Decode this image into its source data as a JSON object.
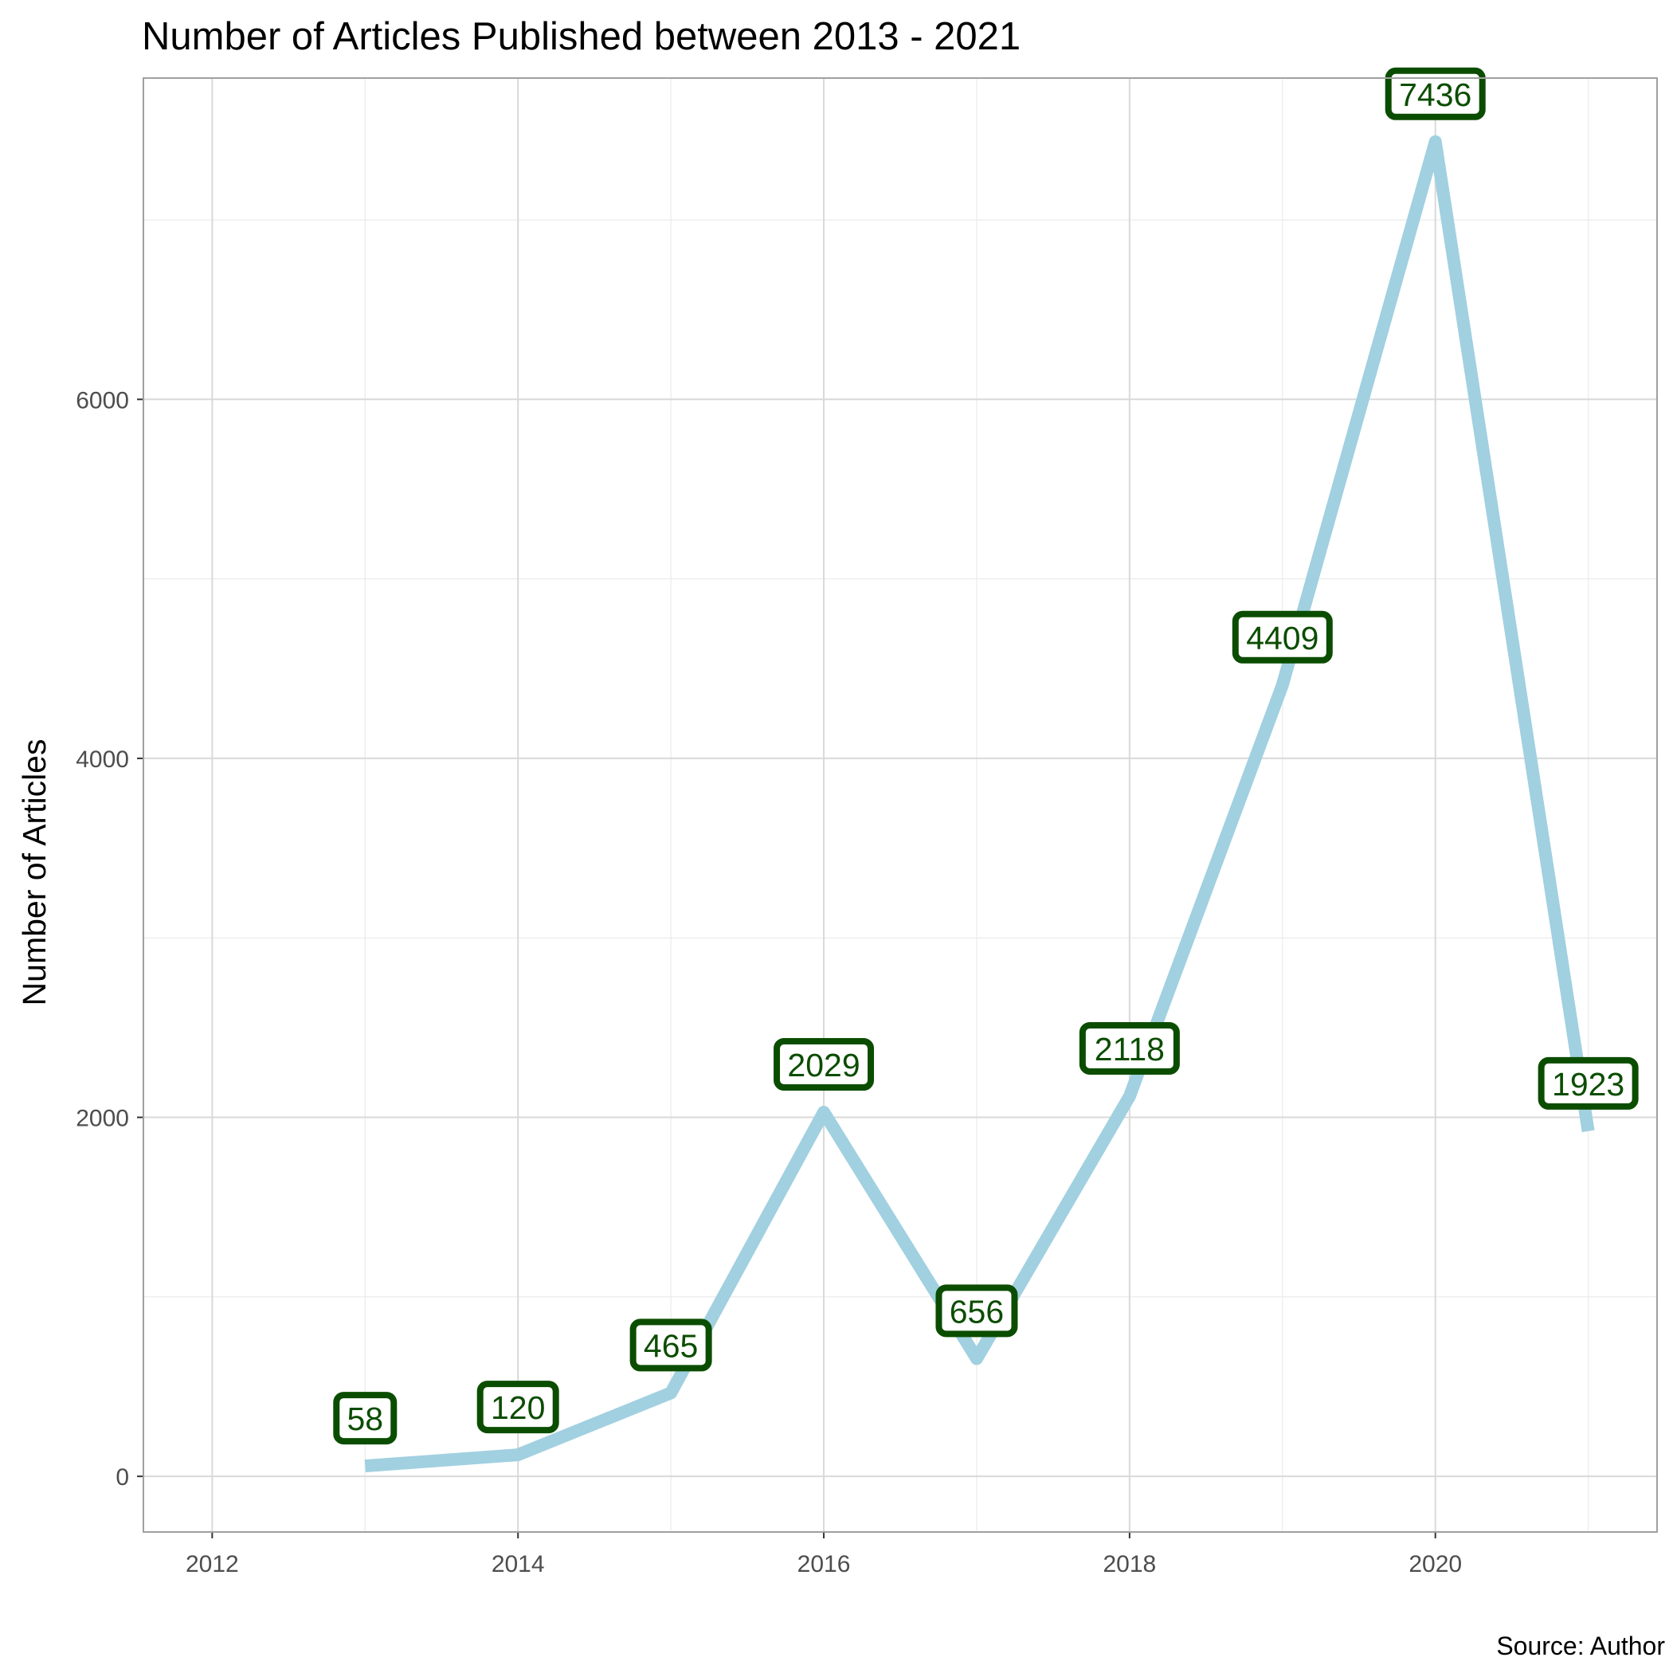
{
  "chart_data": {
    "type": "line",
    "title": "Number of Articles Published between 2013 - 2021",
    "xlabel": "",
    "ylabel": "Number of Articles",
    "caption": "Source: Author",
    "x": [
      2013,
      2014,
      2015,
      2016,
      2017,
      2018,
      2019,
      2020,
      2021
    ],
    "series": [
      {
        "values": [
          58,
          120,
          465,
          2029,
          656,
          2118,
          4409,
          7436,
          1923
        ]
      }
    ],
    "data_labels": [
      "58",
      "120",
      "465",
      "2029",
      "656",
      "2118",
      "4409",
      "7436",
      "1923"
    ],
    "xlim": [
      2011.55,
      2021.45
    ],
    "ylim": [
      -310,
      7790
    ],
    "x_ticks": [
      2012,
      2014,
      2016,
      2018,
      2020
    ],
    "x_tick_labels": [
      "2012",
      "2014",
      "2016",
      "2018",
      "2020"
    ],
    "y_ticks": [
      0,
      2000,
      4000,
      6000
    ],
    "y_tick_labels": [
      "0",
      "2000",
      "4000",
      "6000"
    ],
    "grid": true,
    "legend": "none",
    "colors": {
      "line": "#a1d0e0",
      "label_border": "#0b4d00",
      "label_text": "#0b4d00",
      "grid": "#d9d9d9"
    }
  }
}
